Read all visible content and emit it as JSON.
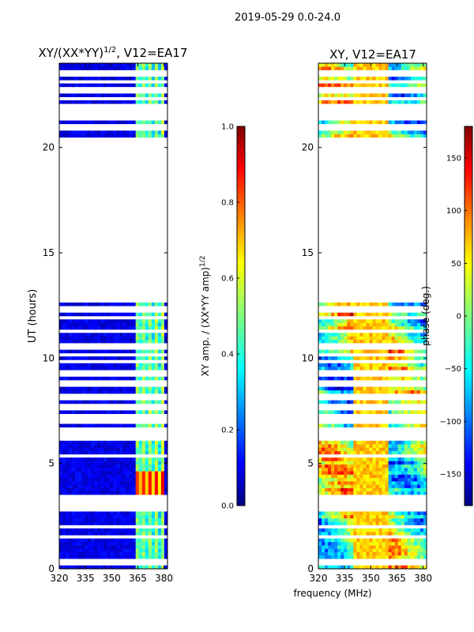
{
  "suptitle": "2019-05-29 0.0-24.0",
  "shared_xlabel": "frequency (MHz)",
  "chart_data": [
    {
      "type": "heatmap",
      "title_main": "XY/(XX*YY)",
      "title_exp": "1/2",
      "title_tail": ", V12=EA17",
      "ylabel": "UT (hours)",
      "xlim": [
        320,
        382
      ],
      "ylim": [
        0,
        24
      ],
      "x_ticks": [
        320,
        335,
        350,
        365,
        380
      ],
      "y_ticks": [
        0,
        5,
        10,
        15,
        20
      ],
      "data_gap_hours": [
        12.7,
        20.5
      ],
      "flagged_rows_hours": [
        0.3,
        1.5,
        2.0,
        2.9,
        3.1,
        3.4,
        5.35,
        6.2,
        6.6,
        7.0,
        7.3,
        7.7,
        8.2,
        8.8,
        9.3,
        9.8,
        10.2,
        10.6,
        11.3,
        11.9,
        12.3,
        21.0,
        21.4,
        21.6,
        21.9,
        22.3,
        22.7,
        23.1,
        23.5
      ],
      "high_amplitude_band_mhz": [
        363,
        381
      ],
      "peak_amplitude_ut_hours": [
        3.6,
        4.6
      ],
      "colorbar": {
        "label_main": "XY amp. / (XX*YY amp)",
        "label_exp": "1/2",
        "range": [
          0.0,
          1.0
        ],
        "ticks": [
          0.0,
          0.2,
          0.4,
          0.6,
          0.8,
          1.0
        ],
        "tick_labels": [
          "0.0",
          "0.2",
          "0.4",
          "0.6",
          "0.8",
          "1.0"
        ]
      }
    },
    {
      "type": "heatmap",
      "title": "XY, V12=EA17",
      "xlim": [
        320,
        382
      ],
      "ylim": [
        0,
        24
      ],
      "x_ticks": [
        320,
        335,
        350,
        365,
        380
      ],
      "y_ticks": [
        0,
        5,
        10,
        15,
        20
      ],
      "data_gap_hours": [
        12.7,
        20.5
      ],
      "colorbar": {
        "label": "phase (deg.)",
        "range": [
          -180,
          180
        ],
        "ticks": [
          -150,
          -100,
          -50,
          0,
          50,
          100,
          150
        ],
        "tick_labels": [
          "−150",
          "−100",
          "−50",
          "0",
          "50",
          "100",
          "150"
        ]
      }
    }
  ],
  "colors": {
    "jet": [
      "#00007f",
      "#0000ff",
      "#007fff",
      "#00ffff",
      "#7fff7f",
      "#ffff00",
      "#ff7f00",
      "#ff0000",
      "#7f0000"
    ]
  }
}
